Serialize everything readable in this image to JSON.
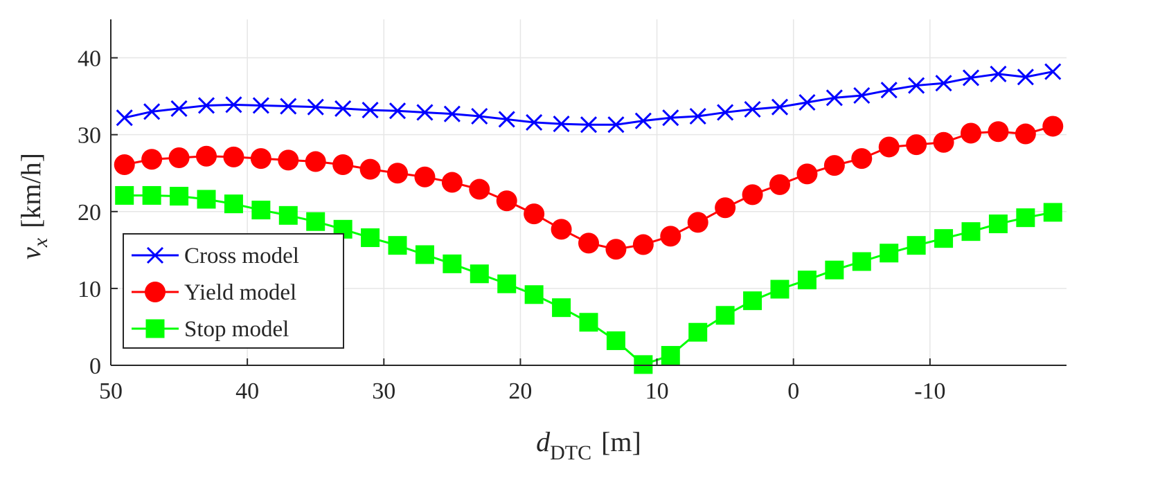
{
  "chart_data": {
    "type": "line",
    "title": "",
    "xlabel_main": "d",
    "xlabel_sub": "DTC",
    "xlabel_unit": "[m]",
    "ylabel_main": "v",
    "ylabel_sub": "x",
    "ylabel_unit": "[km/h]",
    "xlim": [
      50,
      -20
    ],
    "ylim": [
      0,
      45
    ],
    "x_ticks": [
      50,
      40,
      30,
      20,
      10,
      0,
      -10
    ],
    "x_tick_labels": [
      "50",
      "40",
      "30",
      "20",
      "10",
      "0",
      "-10"
    ],
    "y_ticks": [
      0,
      10,
      20,
      30,
      40
    ],
    "y_tick_labels": [
      "0",
      "10",
      "20",
      "30",
      "40"
    ],
    "grid": true,
    "legend_position": "bottom-left",
    "x": [
      49,
      47,
      45,
      43,
      41,
      39,
      37,
      35,
      33,
      31,
      29,
      27,
      25,
      23,
      21,
      19,
      17,
      15,
      13,
      11,
      9,
      7,
      5,
      3,
      1,
      -1,
      -3,
      -5,
      -7,
      -9,
      -11,
      -13,
      -15,
      -17,
      -19
    ],
    "series": [
      {
        "name": "Cross model",
        "color": "#0000ff",
        "marker": "x",
        "values": [
          32.2,
          33.0,
          33.4,
          33.8,
          33.9,
          33.8,
          33.7,
          33.6,
          33.4,
          33.2,
          33.1,
          32.9,
          32.7,
          32.4,
          32.0,
          31.6,
          31.4,
          31.3,
          31.3,
          31.8,
          32.2,
          32.4,
          32.9,
          33.3,
          33.6,
          34.2,
          34.8,
          35.1,
          35.8,
          36.4,
          36.7,
          37.4,
          37.9,
          37.5,
          38.2
        ]
      },
      {
        "name": "Yield model",
        "color": "#ff0000",
        "marker": "circle",
        "values": [
          26.1,
          26.8,
          27.0,
          27.2,
          27.1,
          26.9,
          26.7,
          26.5,
          26.1,
          25.5,
          25.0,
          24.5,
          23.8,
          22.9,
          21.4,
          19.7,
          17.7,
          15.9,
          15.1,
          15.7,
          16.8,
          18.6,
          20.5,
          22.2,
          23.5,
          24.9,
          26.0,
          26.9,
          28.4,
          28.7,
          29.0,
          30.2,
          30.4,
          30.1,
          31.1
        ]
      },
      {
        "name": "Stop model",
        "color": "#00ff00",
        "marker": "square",
        "values": [
          22.1,
          22.1,
          22.0,
          21.6,
          21.0,
          20.2,
          19.5,
          18.7,
          17.7,
          16.6,
          15.6,
          14.4,
          13.2,
          11.9,
          10.6,
          9.2,
          7.5,
          5.6,
          3.2,
          0.1,
          1.3,
          4.3,
          6.5,
          8.4,
          9.9,
          11.1,
          12.4,
          13.5,
          14.6,
          15.6,
          16.5,
          17.4,
          18.4,
          19.2,
          19.9
        ]
      }
    ]
  }
}
